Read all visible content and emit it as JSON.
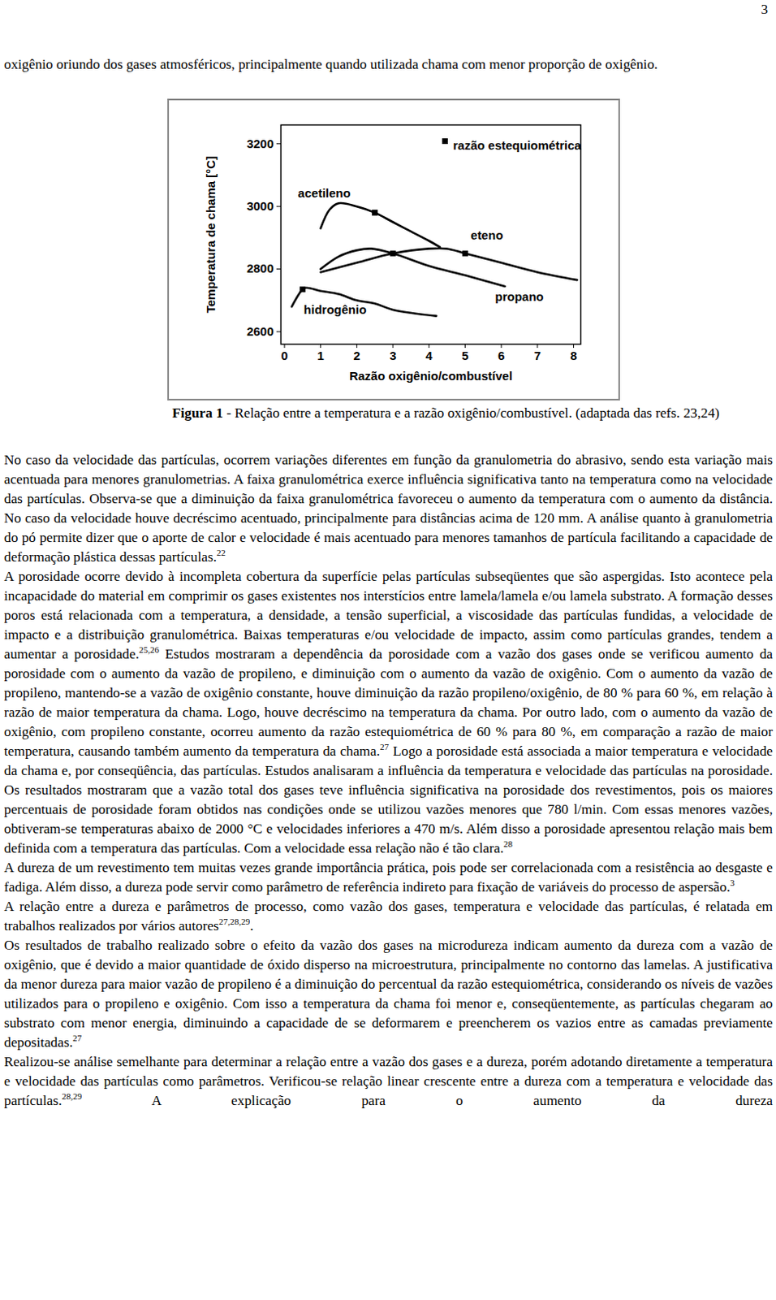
{
  "page_number": "3",
  "text_before": [
    "oxigênio oriundo dos gases atmosféricos, principalmente quando utilizada chama com menor proporção de oxigênio."
  ],
  "chart_data": {
    "type": "line",
    "x_label": "Razão oxigênio/combustível",
    "y_label": "Temperatura de chama [°C]",
    "xlim": [
      -0.1,
      8.2
    ],
    "ylim": [
      2560,
      3260
    ],
    "xticks": [
      0,
      1,
      2,
      3,
      4,
      5,
      6,
      7,
      8
    ],
    "yticks": [
      2600,
      2800,
      3000,
      3200
    ],
    "grid": false,
    "legend": "top-right",
    "legend_label": "razão estequiométrica",
    "marker": "square",
    "series": [
      {
        "name": "acetileno",
        "color": "#000000",
        "x": [
          1.0,
          1.25,
          1.5,
          2.0,
          2.5,
          3.0,
          3.5,
          4.0,
          4.3
        ],
        "values": [
          2930,
          2990,
          3010,
          3000,
          2980,
          2950,
          2920,
          2890,
          2870
        ],
        "stoichiometric": {
          "x": 2.5,
          "y": 2980
        },
        "label": {
          "x": 1.1,
          "y": 3040
        }
      },
      {
        "name": "eteno",
        "color": "#000000",
        "x": [
          1.0,
          1.5,
          2.0,
          2.4,
          3.0,
          4.0,
          5.0,
          6.1
        ],
        "values": [
          2800,
          2840,
          2860,
          2865,
          2850,
          2810,
          2780,
          2745
        ],
        "stoichiometric": {
          "x": 3.0,
          "y": 2850
        },
        "label": {
          "x": 5.6,
          "y": 2907
        }
      },
      {
        "name": "propano",
        "color": "#000000",
        "x": [
          1.0,
          2.0,
          3.0,
          4.0,
          4.5,
          5.0,
          6.0,
          7.0,
          8.1
        ],
        "values": [
          2790,
          2820,
          2850,
          2865,
          2865,
          2850,
          2820,
          2790,
          2765
        ],
        "stoichiometric": {
          "x": 5.0,
          "y": 2850
        },
        "label": {
          "x": 6.5,
          "y": 2710
        }
      },
      {
        "name": "hidrogênio",
        "color": "#000000",
        "x": [
          0.2,
          0.5,
          0.6,
          1.0,
          1.5,
          2.0,
          2.5,
          3.0,
          4.2
        ],
        "values": [
          2680,
          2735,
          2740,
          2730,
          2720,
          2700,
          2690,
          2670,
          2650
        ],
        "stoichiometric": {
          "x": 0.5,
          "y": 2735
        },
        "label": {
          "x": 1.4,
          "y": 2670
        }
      }
    ]
  },
  "caption": {
    "bold": "Figura 1",
    "text": " - Relação entre a temperatura e a razão oxigênio/combustível. (adaptada das refs. 23,24)"
  },
  "paragraphs": [
    [
      "No caso da velocidade das partículas, ocorrem variações diferentes em função da granulometria do abrasivo, sendo esta variação mais acentuada para menores granulometrias. A faixa granulométrica exerce influência significativa tanto na temperatura como na velocidade das partículas. Observa-se que a diminuição da faixa granulométrica favoreceu o aumento da temperatura com o aumento da distância. No caso da velocidade houve decréscimo acentuado, principalmente para distâncias acima de 120 mm. A análise quanto à granulometria do pó permite dizer que o aporte de calor e velocidade é mais acentuado para menores tamanhos de partícula facilitando a capacidade de deformação plástica dessas partículas.",
      {
        "sup": "22"
      }
    ],
    [
      "A porosidade ocorre devido à incompleta cobertura da superfície pelas partículas subseqüentes que são aspergidas. Isto acontece pela incapacidade do material em comprimir os gases existentes nos interstícios entre lamela/lamela e/ou lamela substrato. A formação desses poros está relacionada com a temperatura, a densidade, a tensão superficial, a viscosidade das partículas fundidas, a velocidade de impacto e a distribuição granulométrica. Baixas temperaturas e/ou velocidade de impacto, assim como partículas grandes, tendem a aumentar a porosidade.",
      {
        "sup": "25,26"
      },
      " Estudos mostraram a dependência da porosidade com a vazão dos gases onde se verificou aumento da porosidade com o aumento da vazão de propileno, e diminuição com o aumento da vazão de oxigênio. Com o aumento da vazão de propileno, mantendo-se a vazão de oxigênio constante, houve diminuição da razão propileno/oxigênio, de 80 % para 60 %, em relação à razão de maior temperatura da chama. Logo, houve decréscimo na temperatura da chama. Por outro lado, com o aumento da vazão de oxigênio, com propileno constante, ocorreu aumento da razão estequiométrica de 60 % para 80 %, em comparação a razão de maior temperatura, causando também aumento da temperatura da chama.",
      {
        "sup": "27"
      },
      " Logo a porosidade está associada a maior temperatura e velocidade da chama e, por conseqüência, das partículas. Estudos analisaram a influência da temperatura e velocidade das partículas na porosidade. Os resultados mostraram que a vazão total dos gases teve influência significativa na porosidade dos revestimentos, pois os maiores percentuais de porosidade foram obtidos nas condições onde se utilizou vazões menores que 780 l/min. Com essas menores vazões, obtiveram-se temperaturas abaixo de 2000 °C e velocidades inferiores a 470 m/s. Além disso a porosidade apresentou relação mais bem definida com a temperatura das partículas. Com a velocidade essa relação não é tão clara.",
      {
        "sup": "28"
      }
    ],
    [
      "A dureza de um revestimento tem muitas vezes grande importância prática, pois pode ser correlacionada com a resistência ao desgaste e fadiga. Além disso, a dureza pode servir como parâmetro de referência indireto para fixação de variáveis do processo de aspersão.",
      {
        "sup": "3"
      }
    ],
    [
      "A relação entre a dureza e parâmetros de processo, como vazão dos gases, temperatura e velocidade das partículas, é relatada em trabalhos realizados por vários autores",
      {
        "sup": "27,28,29"
      },
      "."
    ],
    [
      "Os resultados de trabalho realizado sobre o efeito da vazão dos gases na microdureza indicam aumento da dureza com a vazão de oxigênio, que é devido a maior quantidade de óxido disperso na microestrutura, principalmente no contorno das lamelas. A justificativa da menor dureza para maior vazão de propileno é a diminuição do percentual da razão estequiométrica, considerando os níveis de vazões utilizados para o propileno e oxigênio. Com isso a temperatura da chama foi menor e, conseqüentemente, as partículas chegaram ao substrato com menor energia, diminuindo a capacidade de se deformarem e preencherem os vazios entre as camadas previamente depositadas.",
      {
        "sup": "27"
      }
    ],
    [
      "Realizou-se análise semelhante para determinar a relação entre a vazão dos gases e a dureza, porém adotando diretamente a temperatura e velocidade das partículas como parâmetros. Verificou-se relação linear crescente entre a dureza com a temperatura e velocidade das partículas.",
      {
        "sup": "28,29"
      },
      " A explicação para o aumento da dureza"
    ]
  ]
}
